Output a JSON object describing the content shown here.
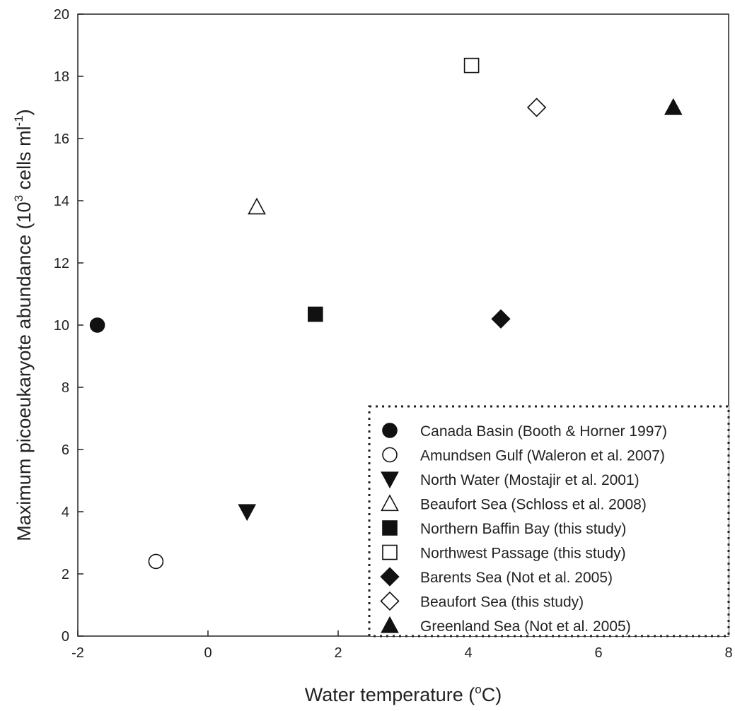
{
  "chart_data": {
    "type": "scatter",
    "xlabel": "Water temperature (",
    "xlabel_sup": "o",
    "xlabel_end": "C)",
    "ylabel": "Maximum picoeukaryote abundance (10",
    "ylabel_sup1": "3",
    "ylabel_mid": " cells ml",
    "ylabel_sup2": "-1",
    "ylabel_end": ")",
    "xlim": [
      -2,
      8
    ],
    "ylim": [
      0,
      20
    ],
    "x_ticks": [
      -2,
      0,
      2,
      4,
      6,
      8
    ],
    "y_ticks": [
      0,
      2,
      4,
      6,
      8,
      10,
      12,
      14,
      16,
      18,
      20
    ],
    "legend_position": "bottom-right",
    "series": [
      {
        "name": "Canada Basin (Booth & Horner 1997)",
        "marker": "circle",
        "filled": true,
        "x": -1.7,
        "y": 10.0
      },
      {
        "name": "Amundsen Gulf (Waleron et al. 2007)",
        "marker": "circle",
        "filled": false,
        "x": -0.8,
        "y": 2.4
      },
      {
        "name": "North Water (Mostajir et al. 2001)",
        "marker": "triangle-down",
        "filled": true,
        "x": 0.6,
        "y": 4.0
      },
      {
        "name": "Beaufort Sea (Schloss et al. 2008)",
        "marker": "triangle-up",
        "filled": false,
        "x": 0.75,
        "y": 13.8
      },
      {
        "name": "Northern Baffin Bay (this study)",
        "marker": "square",
        "filled": true,
        "x": 1.65,
        "y": 10.35
      },
      {
        "name": "Northwest Passage (this study)",
        "marker": "square",
        "filled": false,
        "x": 4.05,
        "y": 18.35
      },
      {
        "name": "Barents Sea (Not et al. 2005)",
        "marker": "diamond",
        "filled": true,
        "x": 4.5,
        "y": 10.2
      },
      {
        "name": "Beaufort Sea (this study)",
        "marker": "diamond",
        "filled": false,
        "x": 5.05,
        "y": 17.0
      },
      {
        "name": "Greenland Sea (Not et al. 2005)",
        "marker": "triangle-up",
        "filled": true,
        "x": 7.15,
        "y": 17.0
      }
    ]
  }
}
